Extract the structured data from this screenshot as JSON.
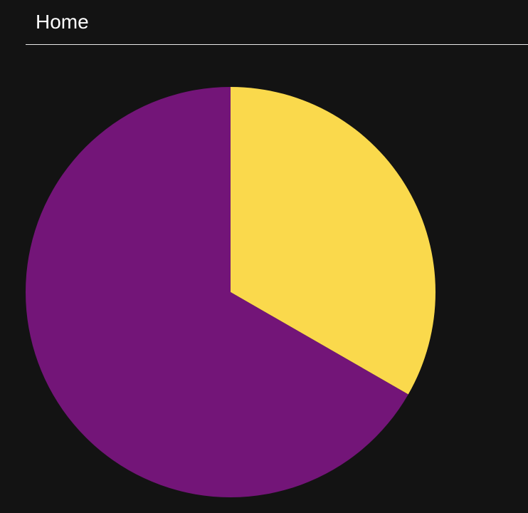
{
  "header": {
    "title": "Home"
  },
  "chart_data": {
    "type": "pie",
    "title": "",
    "start_angle_deg": 0,
    "direction": "clockwise",
    "slices": [
      {
        "label": "",
        "value": 33.3,
        "color": "#fad94c"
      },
      {
        "label": "",
        "value": 66.7,
        "color": "#731578"
      }
    ],
    "legend": "none"
  }
}
